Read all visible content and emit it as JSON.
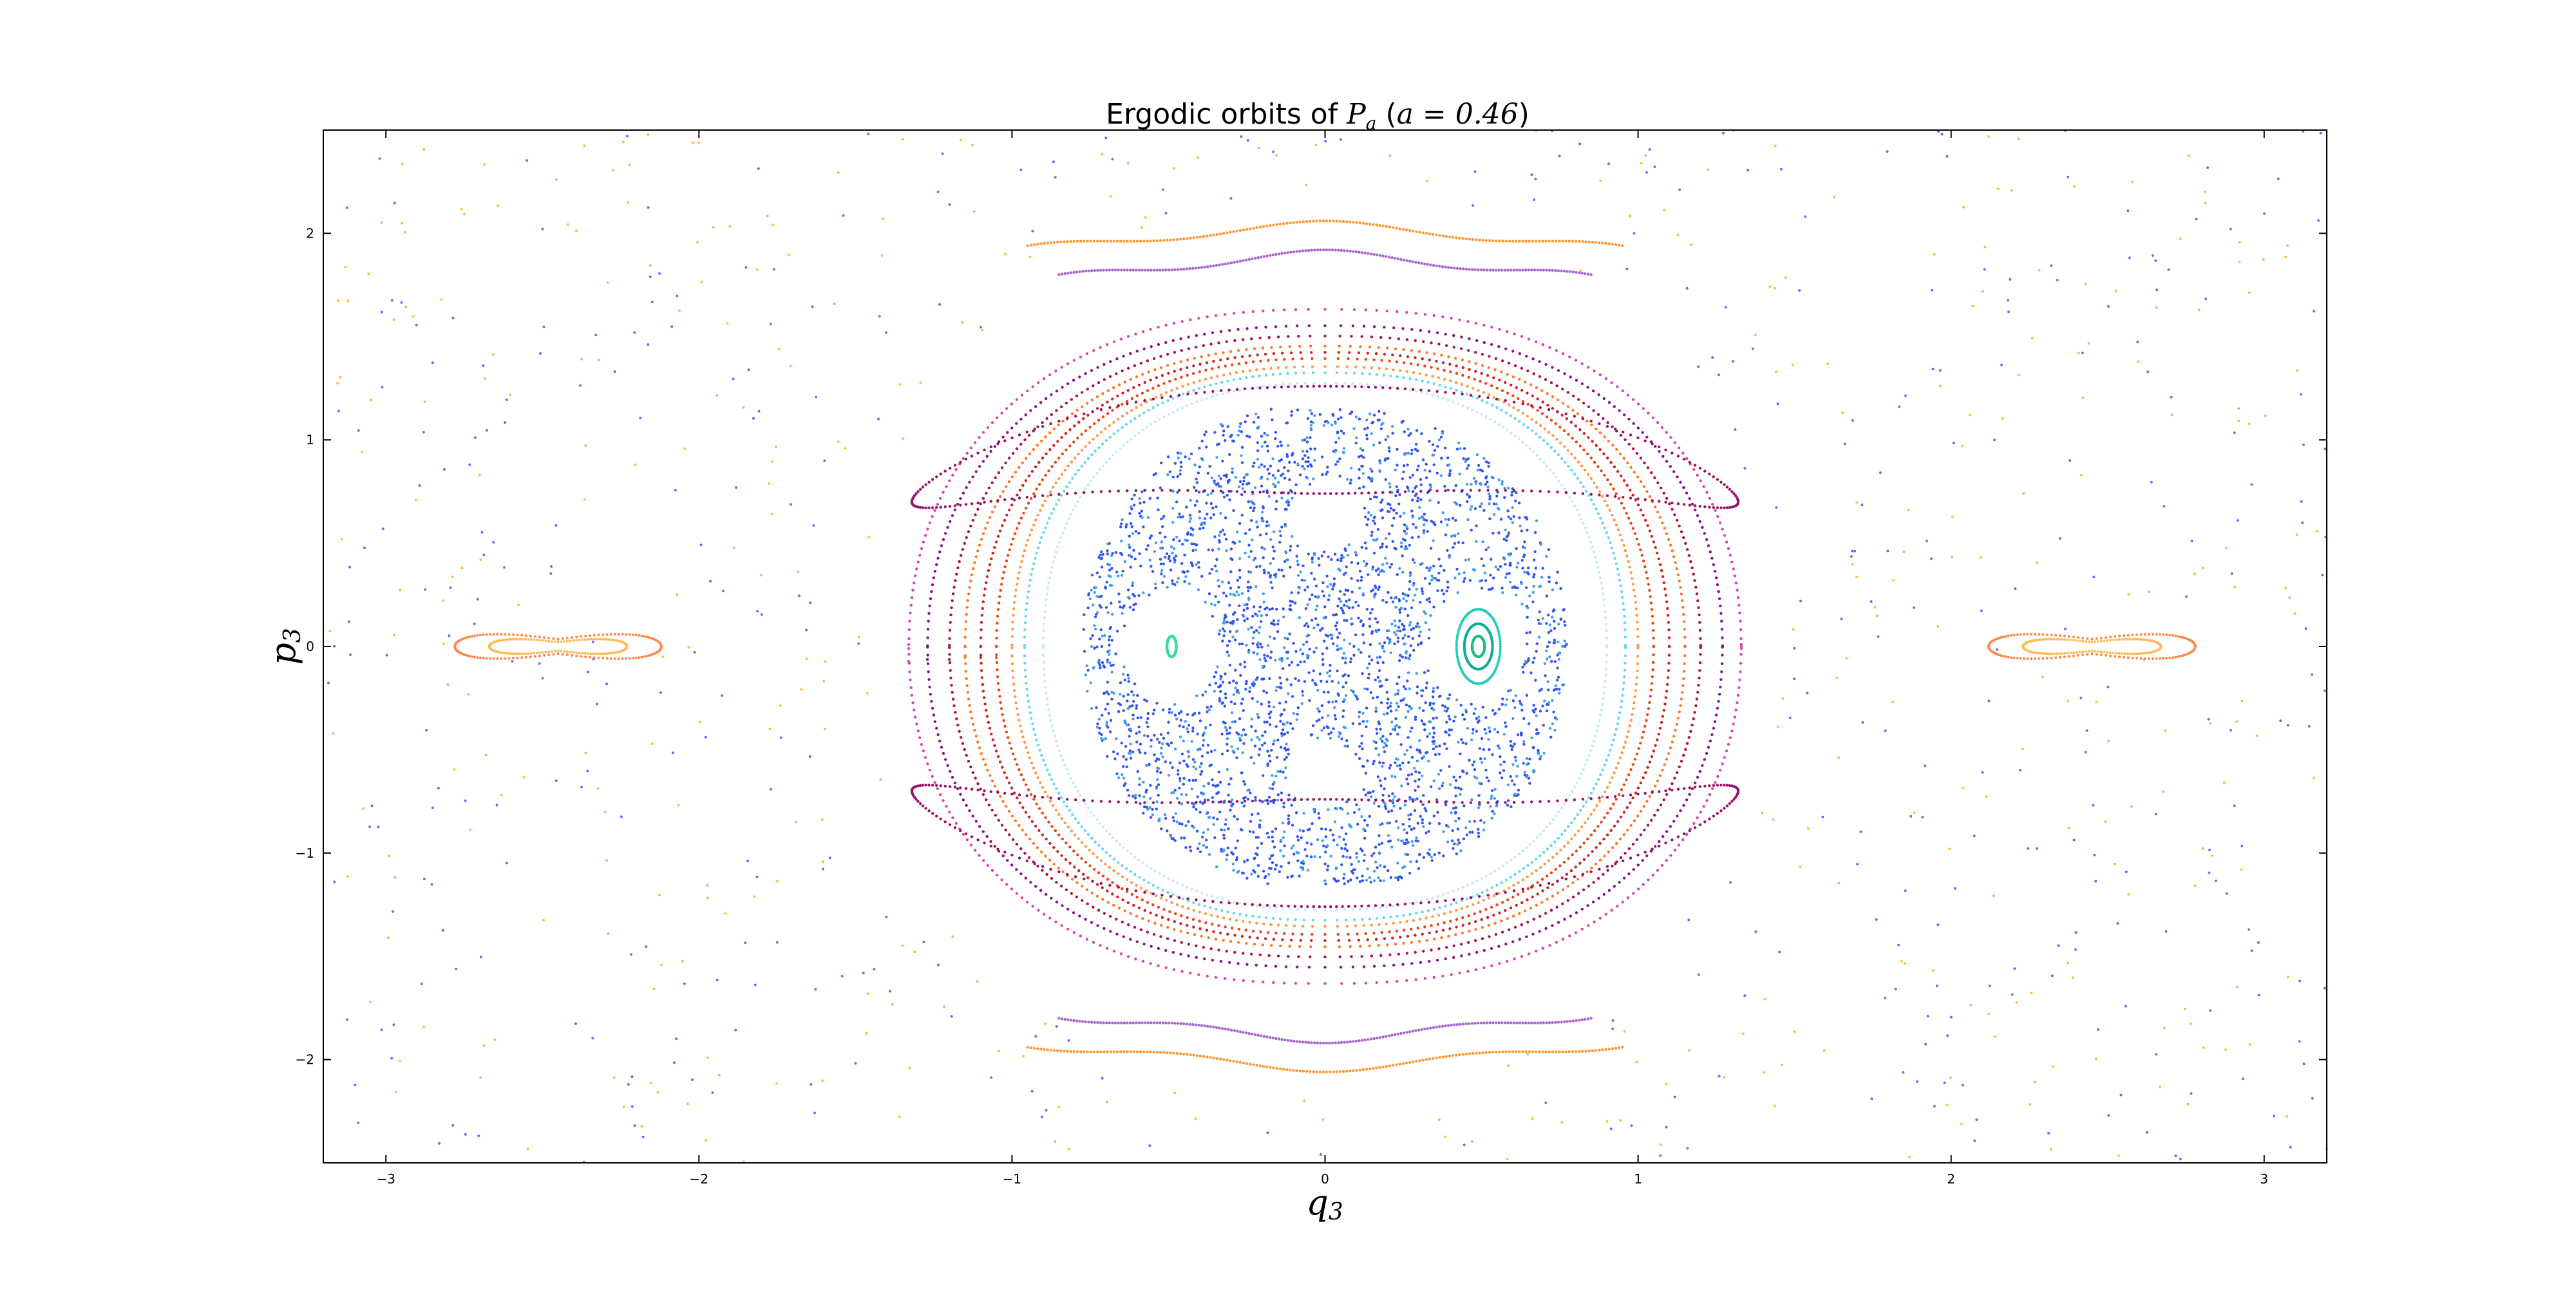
{
  "chart_data": {
    "type": "scatter",
    "title": {
      "prefix": "Ergodic orbits of ",
      "math_main": "P",
      "math_sub": "a",
      "params_open": " (",
      "param_symbol": "a",
      "param_eq": " = ",
      "param_value": "0.46",
      "params_close": ")"
    },
    "xlabel": {
      "main": "q",
      "sub": "3"
    },
    "ylabel": {
      "main": "p",
      "sub": "3"
    },
    "xlim": [
      -3.2,
      3.2
    ],
    "ylim": [
      -2.5,
      2.5
    ],
    "xticks": [
      {
        "value": -3,
        "label": "−3"
      },
      {
        "value": -2,
        "label": "−2"
      },
      {
        "value": -1,
        "label": "−1"
      },
      {
        "value": 0,
        "label": "0"
      },
      {
        "value": 1,
        "label": "1"
      },
      {
        "value": 2,
        "label": "2"
      },
      {
        "value": 3,
        "label": "3"
      }
    ],
    "yticks": [
      {
        "value": -2,
        "label": "−2"
      },
      {
        "value": -1,
        "label": "−1"
      },
      {
        "value": 0,
        "label": "0"
      },
      {
        "value": 1,
        "label": "1"
      },
      {
        "value": 2,
        "label": "2"
      }
    ],
    "grid": false,
    "legend": "none",
    "colormap": "jet",
    "marker": "dot",
    "series": [
      {
        "kind": "sea",
        "color": "#3355ee",
        "count": 2200,
        "rx": 0.8,
        "ry": 1.15,
        "holes": [
          [
            0,
            0.62,
            0.12,
            0.16
          ],
          [
            0,
            -0.62,
            0.12,
            0.16
          ],
          [
            -0.49,
            0,
            0.15,
            0.28
          ],
          [
            0.49,
            0,
            0.15,
            0.28
          ]
        ]
      },
      {
        "kind": "sea",
        "color": "#42a0e8",
        "count": 900,
        "rx": 0.8,
        "ry": 1.15,
        "holes": [
          [
            0,
            0.62,
            0.12,
            0.16
          ],
          [
            0,
            -0.62,
            0.12,
            0.16
          ],
          [
            -0.49,
            0,
            0.15,
            0.28
          ],
          [
            0.49,
            0,
            0.15,
            0.28
          ]
        ]
      },
      {
        "kind": "outer",
        "color": "#6a6aff",
        "count": 420
      },
      {
        "kind": "outer",
        "color": "#ffbf3a",
        "count": 260
      },
      {
        "kind": "outer",
        "color": "#9fe060",
        "count": 120
      },
      {
        "kind": "island",
        "color": "#22ccbb",
        "cx": 0.49,
        "cy": 0,
        "rx": 0.07,
        "ry": 0.18
      },
      {
        "kind": "island",
        "color": "#11aa99",
        "cx": 0.49,
        "cy": 0,
        "rx": 0.045,
        "ry": 0.11
      },
      {
        "kind": "island",
        "color": "#22bb88",
        "cx": 0.49,
        "cy": 0,
        "rx": 0.02,
        "ry": 0.05
      },
      {
        "kind": "island",
        "color": "#33dd99",
        "cx": -0.49,
        "cy": 0,
        "rx": 0.015,
        "ry": 0.05
      },
      {
        "kind": "torus",
        "color": "#c8eaf7",
        "rx": 0.9,
        "ry": 1.23,
        "amp": 0.05
      },
      {
        "kind": "torus",
        "color": "#66d8ee",
        "rx": 0.96,
        "ry": 1.28,
        "amp": 0.05
      },
      {
        "kind": "torus",
        "color": "#ff9944",
        "rx": 1.0,
        "ry": 1.31,
        "amp": 0.05
      },
      {
        "kind": "torus",
        "color": "#ee4411",
        "rx": 1.05,
        "ry": 1.34,
        "amp": 0.06
      },
      {
        "kind": "torus",
        "color": "#cc2222",
        "rx": 1.1,
        "ry": 1.37,
        "amp": 0.06
      },
      {
        "kind": "torus",
        "color": "#ff7722",
        "rx": 1.15,
        "ry": 1.4,
        "amp": 0.06
      },
      {
        "kind": "torus",
        "color": "#aa1144",
        "rx": 1.2,
        "ry": 1.44,
        "amp": 0.07
      },
      {
        "kind": "torus",
        "color": "#881188",
        "rx": 1.27,
        "ry": 1.49,
        "amp": 0.07
      },
      {
        "kind": "torus",
        "color": "#dd44aa",
        "rx": 1.33,
        "ry": 1.56,
        "amp": 0.08
      },
      {
        "kind": "lobe",
        "color": "#991166",
        "cx": 0,
        "cy": 1.0,
        "sx": 1.32,
        "sy": 0.75
      },
      {
        "kind": "lobe",
        "color": "#991166",
        "cx": 0,
        "cy": -1.0,
        "sx": 1.32,
        "sy": 0.75
      },
      {
        "kind": "cap",
        "color": "#ff9933",
        "cy": 2.03,
        "w": 0.95,
        "sign": 1
      },
      {
        "kind": "cap",
        "color": "#aa66cc",
        "cy": 1.89,
        "w": 0.85,
        "sign": 1
      },
      {
        "kind": "cap",
        "color": "#ff9933",
        "cy": -2.03,
        "w": 0.95,
        "sign": -1
      },
      {
        "kind": "cap",
        "color": "#aa66cc",
        "cy": -1.89,
        "w": 0.85,
        "sign": -1
      },
      {
        "kind": "fish",
        "color": "#ff8844",
        "cx": -2.45,
        "cy": 0,
        "w": 0.33,
        "h": 0.1
      },
      {
        "kind": "fish",
        "color": "#ffbb55",
        "cx": -2.45,
        "cy": 0,
        "w": 0.22,
        "h": 0.06
      },
      {
        "kind": "fish",
        "color": "#ff8844",
        "cx": 2.45,
        "cy": 0,
        "w": 0.33,
        "h": 0.1
      },
      {
        "kind": "fish",
        "color": "#ffbb55",
        "cx": 2.45,
        "cy": 0,
        "w": 0.22,
        "h": 0.06
      }
    ]
  }
}
